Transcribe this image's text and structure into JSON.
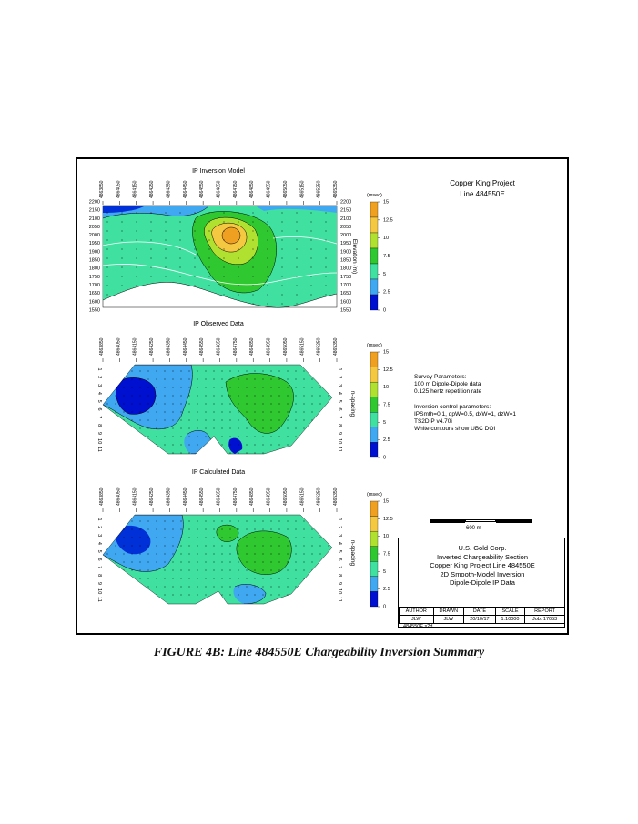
{
  "caption": "FIGURE 4B: Line 484550E Chargeability Inversion Summary",
  "project": {
    "line1": "Copper King Project",
    "line2": "Line 484550E"
  },
  "panels": {
    "model": {
      "title": "IP Inversion Model",
      "axis_label": "Elevation (m)",
      "elevations": [
        "2200",
        "2150",
        "2100",
        "2050",
        "2000",
        "1950",
        "1900",
        "1850",
        "1800",
        "1750",
        "1700",
        "1650",
        "1600",
        "1550"
      ]
    },
    "observed": {
      "title": "IP Observed Data",
      "axis_label": "n-spacing",
      "n_values": [
        "1",
        "2",
        "3",
        "4",
        "5",
        "6",
        "7",
        "8",
        "9",
        "10",
        "11"
      ]
    },
    "calculated": {
      "title": "IP Calculated Data",
      "axis_label": "n-spacing",
      "n_values": [
        "1",
        "2",
        "3",
        "4",
        "5",
        "6",
        "7",
        "8",
        "9",
        "10",
        "11"
      ]
    }
  },
  "stations": [
    "4863850",
    "4864050",
    "4864150",
    "4864250",
    "4864350",
    "4864450",
    "4864550",
    "4864650",
    "4864750",
    "4864850",
    "4864950",
    "4865050",
    "4865150",
    "4865250",
    "4865350"
  ],
  "colorbar": {
    "unit": "(msec)",
    "ticks": [
      "15",
      "12.5",
      "10",
      "7.5",
      "5",
      "2.5",
      "0"
    ],
    "colors": [
      "#f0a020",
      "#f5c842",
      "#b0e030",
      "#30c830",
      "#40e0a0",
      "#40a8f0",
      "#0010d0"
    ]
  },
  "survey": {
    "lines": [
      "Survey Parameters:",
      "100 m Dipole-Dipole data",
      "0.125 hertz repetition rate",
      "",
      "Inversion control parameters:",
      "IPSmth=0.1, dpW=0.5, dxW=1, dzW=1",
      "TS2DIP v4.70i",
      "White contours show UBC DOI"
    ]
  },
  "scale": {
    "label": "600 m"
  },
  "title_block": {
    "lines": [
      "U.S. Gold Corp.",
      "Inverted Chargeability Section",
      "Copper King Project Line 484550E",
      "2D Smooth-Model Inversion",
      "Dipole-Dipole IP Data"
    ],
    "headers": [
      "AUTHOR",
      "DRAWN",
      "DATE",
      "SCALE",
      "REPORT"
    ],
    "values": [
      "JLW",
      "JLW",
      "20/10/17",
      "1:10000",
      "Job: 17053"
    ],
    "filename": "484550E.s2d"
  }
}
